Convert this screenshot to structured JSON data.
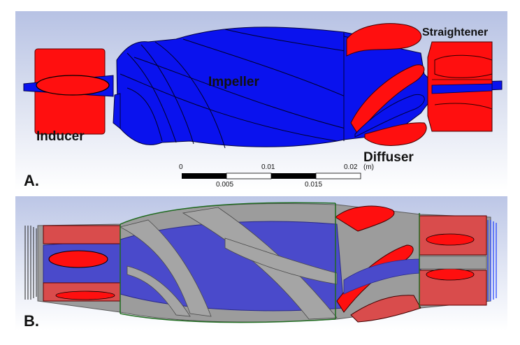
{
  "panels": {
    "a": {
      "letter": "A."
    },
    "b": {
      "letter": "B."
    }
  },
  "parts": {
    "inducer": "Inducer",
    "impeller": "Impeller",
    "straightener": "Straightener",
    "diffuser": "Diffuser"
  },
  "scale_bar": {
    "unit": "(m)",
    "top_ticks": [
      "0",
      "0.01",
      "0.02"
    ],
    "bottom_ticks": [
      "0.005",
      "0.015"
    ]
  },
  "colors": {
    "impeller_blue": "#0a12ee",
    "stator_red": "#ff0f0f",
    "mesh_blue": "#4a4acb",
    "mesh_gray": "#9c9c9c",
    "mesh_red": "#d94c4c",
    "edge_green": "#1f6b1f",
    "panel_bg_top": "#b7c2e4"
  }
}
